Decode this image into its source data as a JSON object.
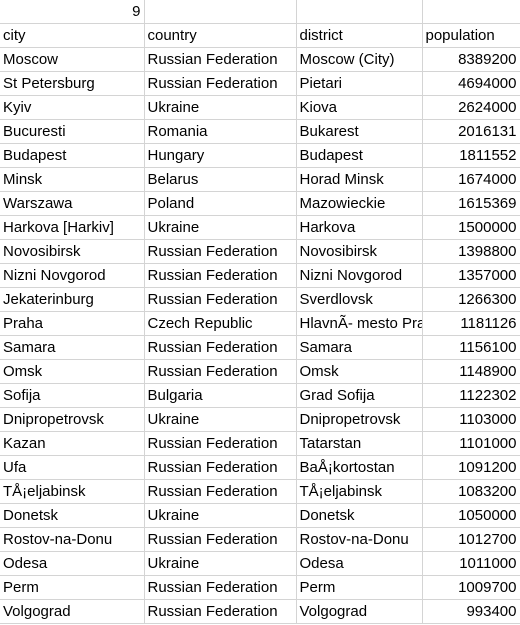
{
  "sheet": {
    "top_row": [
      "9",
      "",
      "",
      ""
    ],
    "headers": [
      "city",
      "country",
      "district",
      "population"
    ],
    "rows": [
      [
        "Moscow",
        "Russian Federation",
        "Moscow (City)",
        "8389200"
      ],
      [
        "St Petersburg",
        "Russian Federation",
        "Pietari",
        "4694000"
      ],
      [
        "Kyiv",
        "Ukraine",
        "Kiova",
        "2624000"
      ],
      [
        "Bucuresti",
        "Romania",
        "Bukarest",
        "2016131"
      ],
      [
        "Budapest",
        "Hungary",
        "Budapest",
        "1811552"
      ],
      [
        "Minsk",
        "Belarus",
        "Horad Minsk",
        "1674000"
      ],
      [
        "Warszawa",
        "Poland",
        "Mazowieckie",
        "1615369"
      ],
      [
        "Harkova [Harkiv]",
        "Ukraine",
        "Harkova",
        "1500000"
      ],
      [
        "Novosibirsk",
        "Russian Federation",
        "Novosibirsk",
        "1398800"
      ],
      [
        "Nizni Novgorod",
        "Russian Federation",
        "Nizni Novgorod",
        "1357000"
      ],
      [
        "Jekaterinburg",
        "Russian Federation",
        "Sverdlovsk",
        "1266300"
      ],
      [
        "Praha",
        "Czech Republic",
        "HlavnÃ- mesto Praha",
        "1181126"
      ],
      [
        "Samara",
        "Russian Federation",
        "Samara",
        "1156100"
      ],
      [
        "Omsk",
        "Russian Federation",
        "Omsk",
        "1148900"
      ],
      [
        "Sofija",
        "Bulgaria",
        "Grad Sofija",
        "1122302"
      ],
      [
        "Dnipropetrovsk",
        "Ukraine",
        "Dnipropetrovsk",
        "1103000"
      ],
      [
        "Kazan",
        "Russian Federation",
        "Tatarstan",
        "1101000"
      ],
      [
        "Ufa",
        "Russian Federation",
        "BaÅ¡kortostan",
        "1091200"
      ],
      [
        "TÅ¡eljabinsk",
        "Russian Federation",
        "TÅ¡eljabinsk",
        "1083200"
      ],
      [
        "Donetsk",
        "Ukraine",
        "Donetsk",
        "1050000"
      ],
      [
        "Rostov-na-Donu",
        "Russian Federation",
        "Rostov-na-Donu",
        "1012700"
      ],
      [
        "Odesa",
        "Ukraine",
        "Odesa",
        "1011000"
      ],
      [
        "Perm",
        "Russian Federation",
        "Perm",
        "1009700"
      ],
      [
        "Volgograd",
        "Russian Federation",
        "Volgograd",
        "993400"
      ]
    ]
  }
}
